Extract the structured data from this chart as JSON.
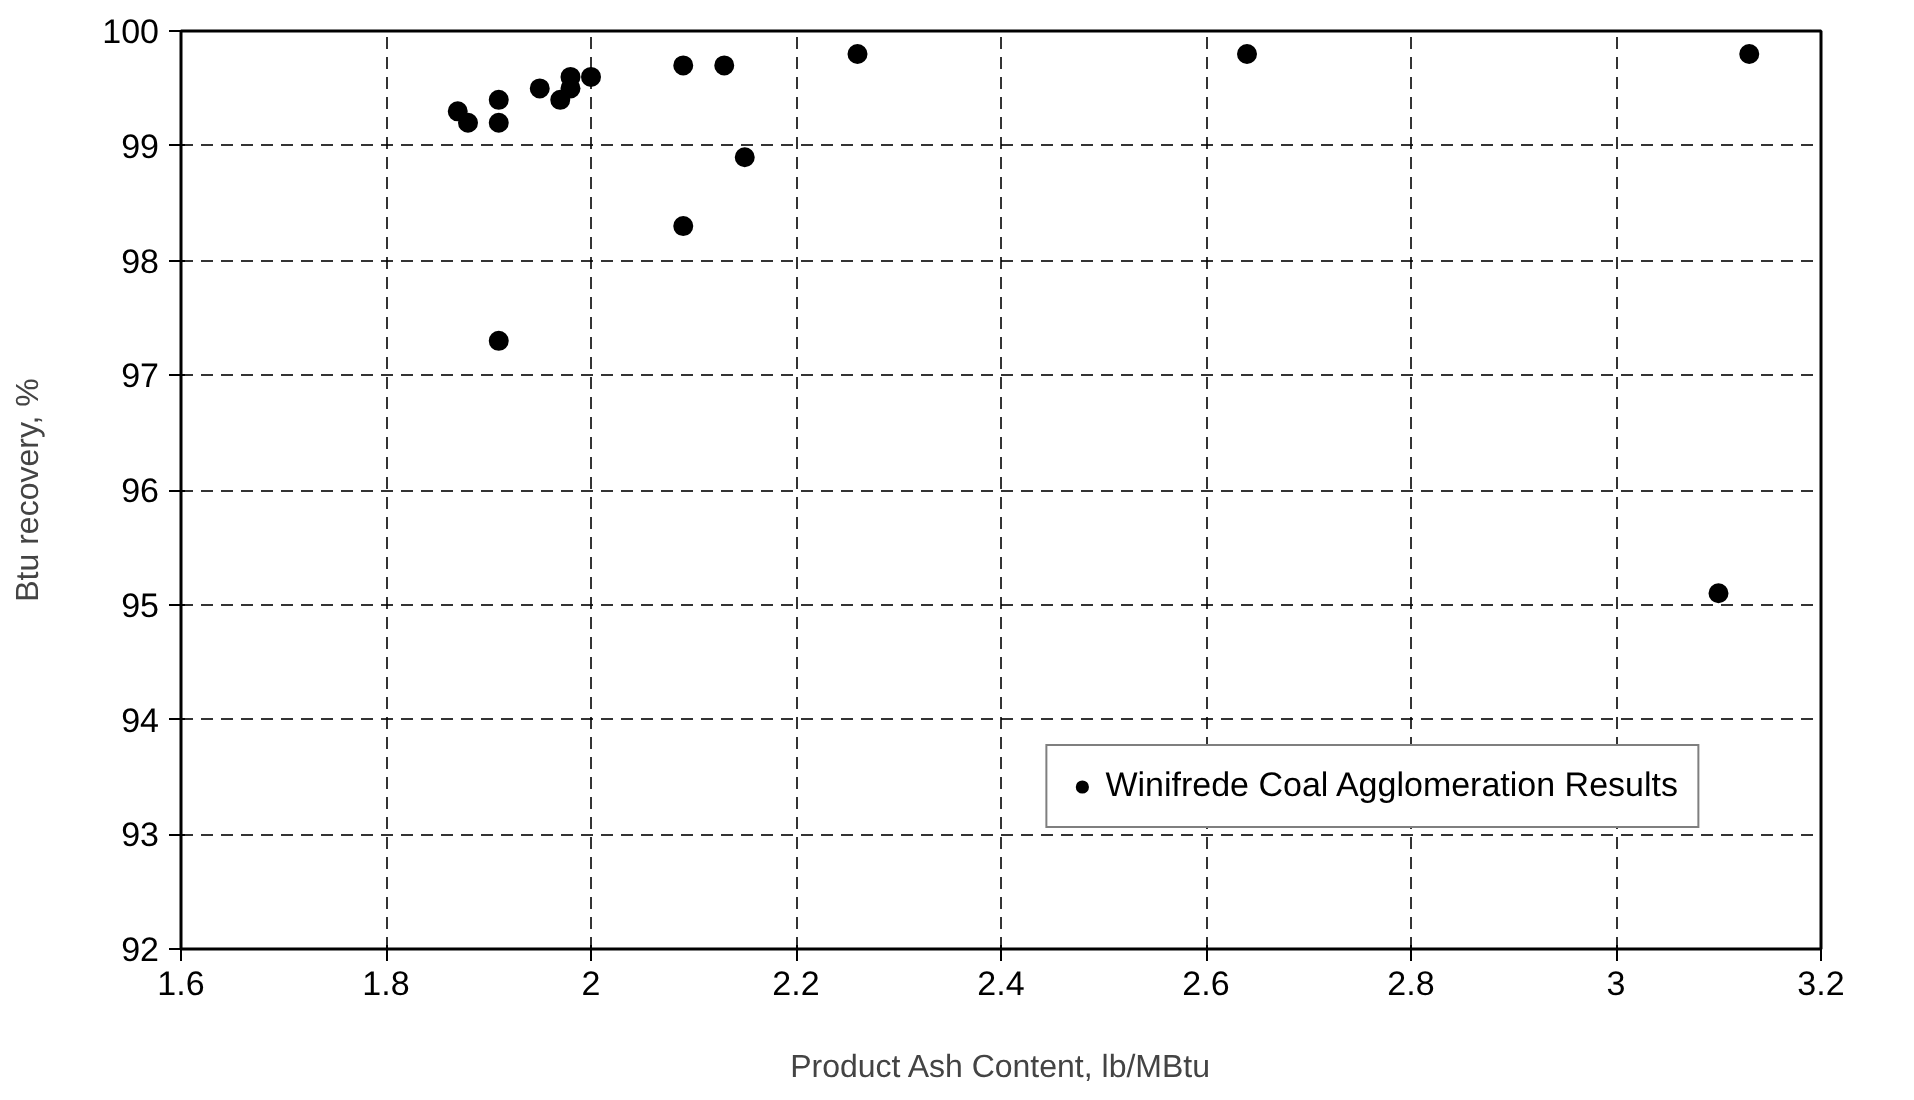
{
  "chart_data": {
    "type": "scatter",
    "xlabel": "Product Ash Content, lb/MBtu",
    "ylabel": "Btu recovery, %",
    "x": [
      1.87,
      1.88,
      1.91,
      1.91,
      1.95,
      1.97,
      1.98,
      1.98,
      2.0,
      2.09,
      2.13,
      2.26,
      2.64,
      3.13,
      2.15,
      2.09,
      1.91,
      3.1
    ],
    "series": [
      {
        "name": "Winifrede Coal Agglomeration Results",
        "color": "#000000",
        "values": [
          99.3,
          99.2,
          99.4,
          99.2,
          99.5,
          99.4,
          99.5,
          99.6,
          99.6,
          99.7,
          99.7,
          99.8,
          99.8,
          99.8,
          98.9,
          98.3,
          97.3,
          95.1
        ]
      }
    ],
    "xlim": [
      1.6,
      3.2
    ],
    "ylim": [
      92,
      100
    ],
    "xticks": [
      1.6,
      1.8,
      2,
      2.2,
      2.4,
      2.6,
      2.8,
      3,
      3.2
    ],
    "yticks": [
      92,
      93,
      94,
      95,
      96,
      97,
      98,
      99,
      100
    ],
    "grid": true,
    "legend": "bottom right",
    "marker": "circle"
  }
}
